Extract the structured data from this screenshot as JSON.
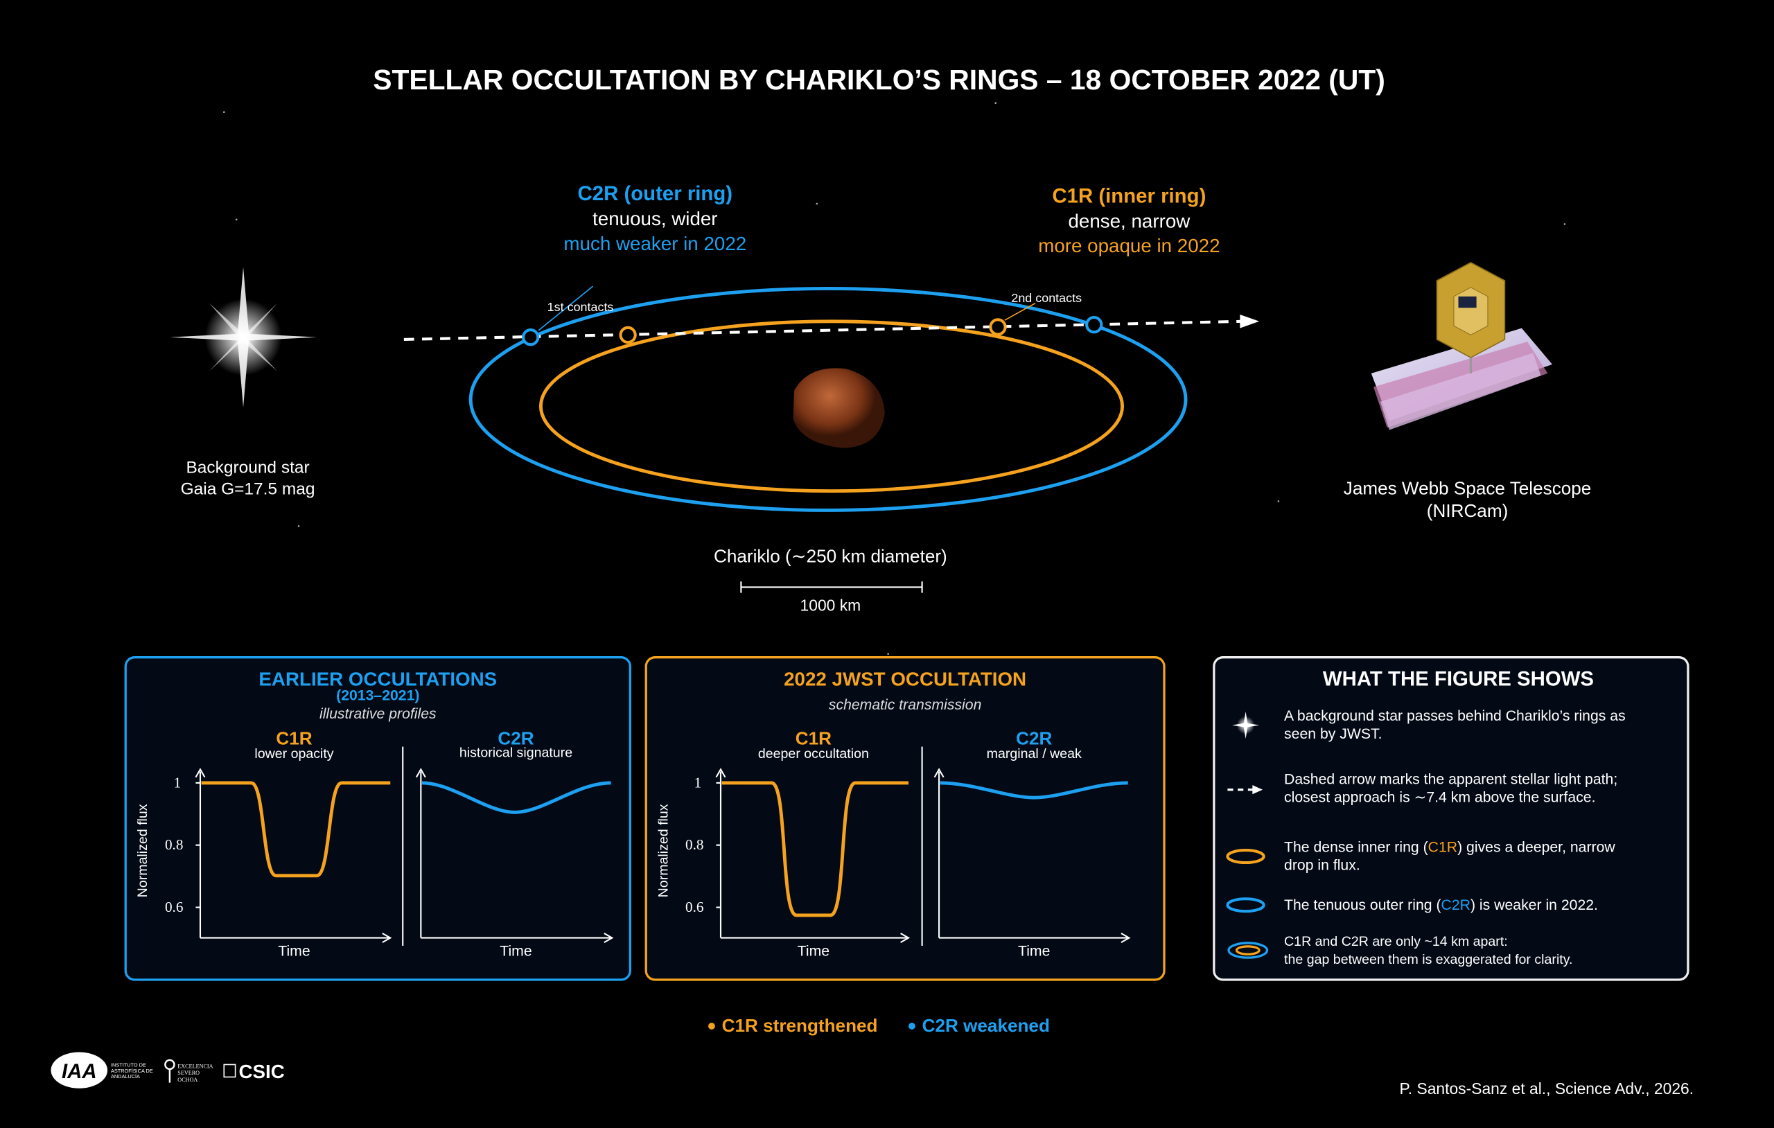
{
  "title": "STELLAR OCCULTATION BY CHARIKLO’S RINGS – 18 OCTOBER 2022 (UT)",
  "diagram": {
    "outer_ring": {
      "name": "C2R (outer ring)",
      "line1": "tenuous, wider",
      "line2": "much weaker in 2022"
    },
    "inner_ring": {
      "name": "C1R (inner ring)",
      "line1": "dense, narrow",
      "line2": "more opaque in 2022"
    },
    "first_contacts": "1st contacts",
    "second_contacts": "2nd contacts",
    "star_label": [
      "Background star",
      "Gaia G=17.5 mag"
    ],
    "telescope_label": [
      "James Webb Space Telescope",
      "(NIRCam)"
    ],
    "body_label": "Chariklo (∼250 km diameter)",
    "scale_label": "1000 km"
  },
  "flux_axis": {
    "label": "Normalized flux",
    "ticks": [
      1,
      0.8,
      0.6
    ]
  },
  "time_label": "Time",
  "panels": [
    {
      "title": "EARLIER OCCULTATIONS",
      "years": "(2013–2021)",
      "note": "illustrative profiles",
      "plots": [
        {
          "ring": "C1R",
          "desc": "lower opacity"
        },
        {
          "ring": "C2R",
          "desc": "historical signature"
        }
      ]
    },
    {
      "title": "2022 JWST OCCULTATION",
      "note": "schematic transmission",
      "plots": [
        {
          "ring": "C1R",
          "desc": "deeper occultation"
        },
        {
          "ring": "C2R",
          "desc": "marginal / weak"
        }
      ]
    }
  ],
  "key": {
    "title": "WHAT THE FIGURE SHOWS",
    "items": [
      {
        "lines": [
          [
            "A background star passes behind Chariklo’s rings as"
          ],
          [
            "seen by JWST."
          ]
        ]
      },
      {
        "lines": [
          [
            "Dashed arrow marks the apparent stellar light path;"
          ],
          [
            "closest approach is ∼7.4 km above the surface."
          ]
        ]
      },
      {
        "lines": [
          [
            "The dense inner ring (",
            "C1R",
            ") gives a deeper, narrow"
          ],
          [
            "drop in flux."
          ]
        ]
      },
      {
        "lines": [
          [
            "The tenuous outer ring (",
            "C2R",
            ") is weaker in 2022."
          ]
        ]
      },
      {
        "lines": [
          [
            "C1R and C2R are only ~14 km apart:"
          ],
          [
            "the gap between them is exaggerated for clarity."
          ]
        ]
      }
    ]
  },
  "legend": [
    "C1R strengthened",
    "C2R weakened"
  ],
  "logos": {
    "iaa": "IAA",
    "iaa_name": [
      "INSTITUTO DE",
      "ASTROFÍSICA DE",
      "ANDALUCÍA"
    ],
    "so": [
      "EXCELENCIA",
      "SEVERO",
      "OCHOA"
    ],
    "csic": "CSIC"
  },
  "credit": "P. Santos-Sanz et al., Science Adv., 2026."
}
